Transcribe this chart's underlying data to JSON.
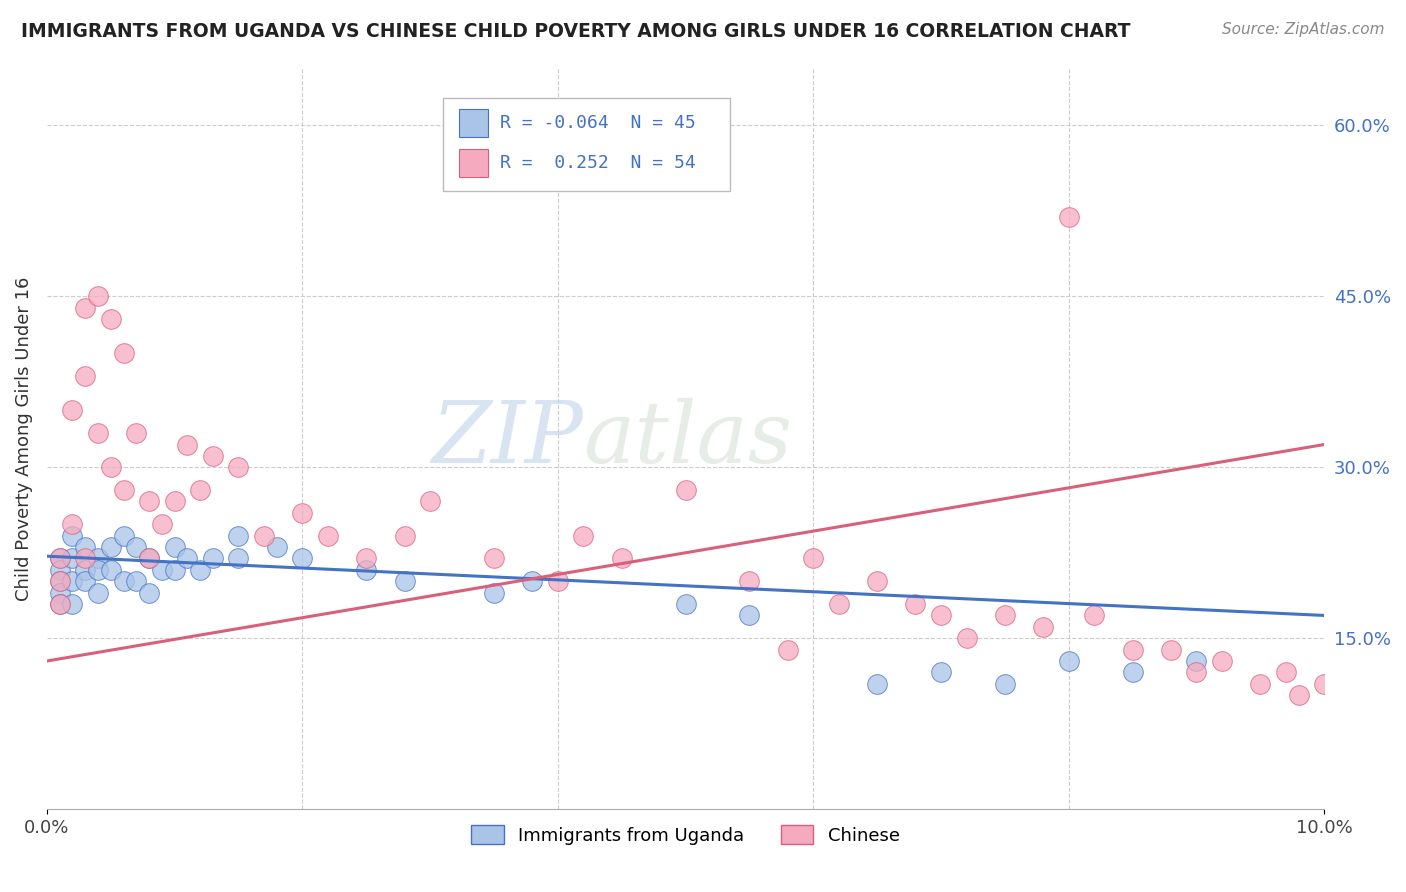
{
  "title": "IMMIGRANTS FROM UGANDA VS CHINESE CHILD POVERTY AMONG GIRLS UNDER 16 CORRELATION CHART",
  "source": "Source: ZipAtlas.com",
  "ylabel": "Child Poverty Among Girls Under 16",
  "xlim": [
    0.0,
    0.1
  ],
  "ylim": [
    0.0,
    0.65
  ],
  "y_ticks_right": [
    0.15,
    0.3,
    0.45,
    0.6
  ],
  "y_tick_labels_right": [
    "15.0%",
    "30.0%",
    "45.0%",
    "60.0%"
  ],
  "color_blue": "#aac4e8",
  "color_pink": "#f5aabf",
  "color_blue_line": "#4472c4",
  "color_pink_line": "#d9607a",
  "watermark_zip": "ZIP",
  "watermark_atlas": "atlas",
  "uganda_x": [
    0.001,
    0.001,
    0.001,
    0.001,
    0.001,
    0.002,
    0.002,
    0.002,
    0.002,
    0.003,
    0.003,
    0.003,
    0.004,
    0.004,
    0.004,
    0.005,
    0.005,
    0.006,
    0.006,
    0.007,
    0.007,
    0.008,
    0.008,
    0.009,
    0.01,
    0.01,
    0.011,
    0.012,
    0.013,
    0.015,
    0.015,
    0.018,
    0.02,
    0.025,
    0.028,
    0.035,
    0.038,
    0.05,
    0.055,
    0.065,
    0.07,
    0.075,
    0.08,
    0.085,
    0.09
  ],
  "uganda_y": [
    0.22,
    0.21,
    0.2,
    0.19,
    0.18,
    0.24,
    0.22,
    0.2,
    0.18,
    0.23,
    0.21,
    0.2,
    0.22,
    0.21,
    0.19,
    0.23,
    0.21,
    0.24,
    0.2,
    0.23,
    0.2,
    0.22,
    0.19,
    0.21,
    0.23,
    0.21,
    0.22,
    0.21,
    0.22,
    0.24,
    0.22,
    0.23,
    0.22,
    0.21,
    0.2,
    0.19,
    0.2,
    0.18,
    0.17,
    0.11,
    0.12,
    0.11,
    0.13,
    0.12,
    0.13
  ],
  "chinese_x": [
    0.001,
    0.001,
    0.001,
    0.002,
    0.002,
    0.003,
    0.003,
    0.003,
    0.004,
    0.004,
    0.005,
    0.005,
    0.006,
    0.006,
    0.007,
    0.008,
    0.008,
    0.009,
    0.01,
    0.011,
    0.012,
    0.013,
    0.015,
    0.017,
    0.02,
    0.022,
    0.025,
    0.028,
    0.03,
    0.035,
    0.04,
    0.042,
    0.045,
    0.05,
    0.055,
    0.058,
    0.06,
    0.062,
    0.065,
    0.068,
    0.07,
    0.072,
    0.075,
    0.078,
    0.08,
    0.082,
    0.085,
    0.088,
    0.09,
    0.092,
    0.095,
    0.097,
    0.098,
    0.1
  ],
  "chinese_y": [
    0.22,
    0.2,
    0.18,
    0.35,
    0.25,
    0.44,
    0.38,
    0.22,
    0.45,
    0.33,
    0.43,
    0.3,
    0.4,
    0.28,
    0.33,
    0.27,
    0.22,
    0.25,
    0.27,
    0.32,
    0.28,
    0.31,
    0.3,
    0.24,
    0.26,
    0.24,
    0.22,
    0.24,
    0.27,
    0.22,
    0.2,
    0.24,
    0.22,
    0.28,
    0.2,
    0.14,
    0.22,
    0.18,
    0.2,
    0.18,
    0.17,
    0.15,
    0.17,
    0.16,
    0.52,
    0.17,
    0.14,
    0.14,
    0.12,
    0.13,
    0.11,
    0.12,
    0.1,
    0.11
  ],
  "uganda_line_x0": 0.0,
  "uganda_line_y0": 0.222,
  "uganda_line_x1": 0.1,
  "uganda_line_y1": 0.17,
  "chinese_line_x0": 0.0,
  "chinese_line_y0": 0.13,
  "chinese_line_x1": 0.1,
  "chinese_line_y1": 0.32
}
